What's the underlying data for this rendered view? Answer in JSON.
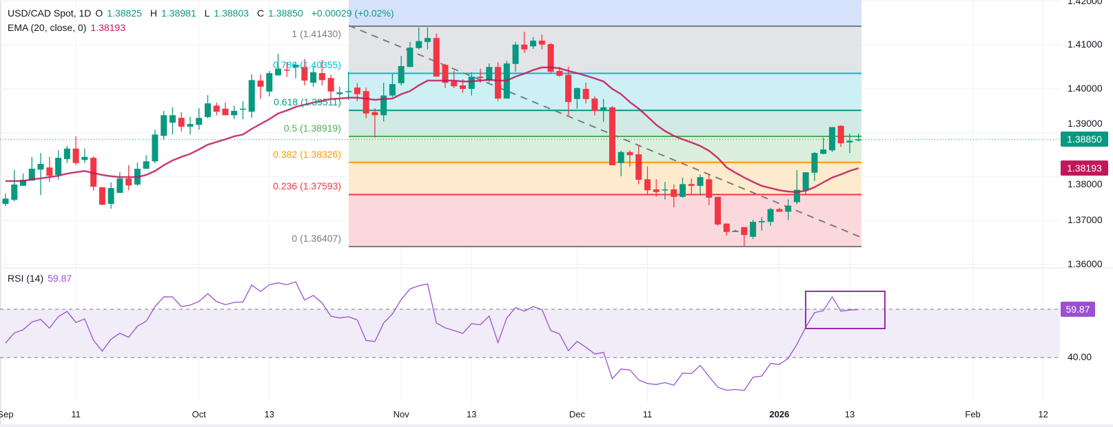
{
  "header": {
    "symbol": "USD/CAD Spot, 1D",
    "o_label": "O",
    "o_value": "1.38825",
    "h_label": "H",
    "h_value": "1.38981",
    "l_label": "L",
    "l_value": "1.38803",
    "c_label": "C",
    "c_value": "1.38850",
    "change": "+0.00029 (+0.02%)",
    "ema_label": "EMA (20, close, 0)",
    "ema_value": "1.38193"
  },
  "rsi": {
    "label": "RSI (14)",
    "value": "59.87"
  },
  "colors": {
    "up": "#089981",
    "down": "#f23645",
    "ema": "#c2185b",
    "rsi": "#9c4fd1",
    "rsi_band": "#f0ecf8",
    "highlight_box": "#9c27b0",
    "trendline": "#787b86"
  },
  "price_axis": {
    "ticks": [
      "1.42000",
      "1.41000",
      "1.40000",
      "1.39000",
      "1.38000",
      "1.37000",
      "1.36000"
    ],
    "last_price_tag": "1.38850",
    "ema_tag": "1.38193"
  },
  "rsi_axis": {
    "ticks": [
      "40.00"
    ],
    "value_tag": "59.87"
  },
  "chart_data": {
    "type": "candlestick",
    "x_ticks": [
      {
        "label": "Sep",
        "bar": 0
      },
      {
        "label": "11",
        "bar": 8
      },
      {
        "label": "Oct",
        "bar": 22
      },
      {
        "label": "13",
        "bar": 30
      },
      {
        "label": "Nov",
        "bar": 45
      },
      {
        "label": "13",
        "bar": 53
      },
      {
        "label": "Dec",
        "bar": 65
      },
      {
        "label": "11",
        "bar": 73
      },
      {
        "label": "2026",
        "bar": 88,
        "bold": true
      },
      {
        "label": "13",
        "bar": 96
      },
      {
        "label": "Feb",
        "bar": 110
      },
      {
        "label": "12",
        "bar": 118
      }
    ],
    "ylim": [
      1.36,
      1.42
    ],
    "ohlc": [
      [
        1.3738,
        1.3761,
        1.3733,
        1.375
      ],
      [
        1.3747,
        1.3815,
        1.3744,
        1.3782
      ],
      [
        1.3779,
        1.3807,
        1.3779,
        1.3793
      ],
      [
        1.3791,
        1.3845,
        1.3791,
        1.3818
      ],
      [
        1.3816,
        1.3854,
        1.3758,
        1.3829
      ],
      [
        1.3821,
        1.3845,
        1.3788,
        1.3802
      ],
      [
        1.3804,
        1.386,
        1.3793,
        1.3843
      ],
      [
        1.384,
        1.387,
        1.3831,
        1.3864
      ],
      [
        1.3864,
        1.3892,
        1.3826,
        1.3831
      ],
      [
        1.3838,
        1.3864,
        1.3831,
        1.3845
      ],
      [
        1.3843,
        1.3846,
        1.3768,
        1.3777
      ],
      [
        1.3776,
        1.3776,
        1.3735,
        1.3736
      ],
      [
        1.3738,
        1.3787,
        1.3727,
        1.3774
      ],
      [
        1.3763,
        1.381,
        1.3763,
        1.3796
      ],
      [
        1.3796,
        1.3826,
        1.3769,
        1.378
      ],
      [
        1.3782,
        1.3832,
        1.3779,
        1.3818
      ],
      [
        1.3818,
        1.3849,
        1.3818,
        1.3835
      ],
      [
        1.3835,
        1.3907,
        1.3831,
        1.3896
      ],
      [
        1.3893,
        1.395,
        1.3885,
        1.394
      ],
      [
        1.3923,
        1.3958,
        1.3896,
        1.394
      ],
      [
        1.3934,
        1.3947,
        1.3903,
        1.3914
      ],
      [
        1.3914,
        1.3936,
        1.3896,
        1.392
      ],
      [
        1.3918,
        1.3956,
        1.3907,
        1.3934
      ],
      [
        1.3936,
        1.3986,
        1.3933,
        1.3967
      ],
      [
        1.3962,
        1.3969,
        1.394,
        1.3948
      ],
      [
        1.3955,
        1.3969,
        1.394,
        1.394
      ],
      [
        1.394,
        1.3962,
        1.3931,
        1.395
      ],
      [
        1.3953,
        1.3972,
        1.3931,
        1.3955
      ],
      [
        1.3948,
        1.4033,
        1.3934,
        1.402
      ],
      [
        1.4019,
        1.4033,
        1.3977,
        1.4005
      ],
      [
        1.3994,
        1.4041,
        1.3983,
        1.4036
      ],
      [
        1.4031,
        1.408,
        1.403,
        1.4046
      ],
      [
        1.4044,
        1.4061,
        1.4027,
        1.4043
      ],
      [
        1.4049,
        1.4061,
        1.4024,
        1.4055
      ],
      [
        1.405,
        1.4068,
        1.4008,
        1.4019
      ],
      [
        1.4014,
        1.405,
        1.4005,
        1.4038
      ],
      [
        1.4036,
        1.4066,
        1.4008,
        1.402
      ],
      [
        1.4025,
        1.4032,
        1.3978,
        1.3994
      ],
      [
        1.3988,
        1.4005,
        1.398,
        1.3992
      ],
      [
        1.3994,
        1.4039,
        1.3975,
        1.3995
      ],
      [
        1.4003,
        1.4013,
        1.3972,
        1.3988
      ],
      [
        1.3995,
        1.4003,
        1.3933,
        1.3944
      ],
      [
        1.3947,
        1.3956,
        1.3889,
        1.394
      ],
      [
        1.394,
        1.4014,
        1.3926,
        1.3985
      ],
      [
        1.3985,
        1.4035,
        1.3981,
        1.4011
      ],
      [
        1.4013,
        1.4075,
        1.4008,
        1.4052
      ],
      [
        1.405,
        1.4107,
        1.405,
        1.4094
      ],
      [
        1.4093,
        1.414,
        1.409,
        1.4109
      ],
      [
        1.4107,
        1.414,
        1.409,
        1.4116
      ],
      [
        1.4116,
        1.4126,
        1.4028,
        1.4028
      ],
      [
        1.4055,
        1.4057,
        1.4002,
        1.4014
      ],
      [
        1.4017,
        1.4041,
        1.4002,
        1.4006
      ],
      [
        1.4008,
        1.4022,
        1.3991,
        1.4
      ],
      [
        1.4,
        1.4038,
        1.3985,
        1.4028
      ],
      [
        1.4028,
        1.4046,
        1.4014,
        1.4025
      ],
      [
        1.4019,
        1.4058,
        1.4015,
        1.405
      ],
      [
        1.405,
        1.4061,
        1.3972,
        1.3978
      ],
      [
        1.3978,
        1.4064,
        1.3978,
        1.4058
      ],
      [
        1.4057,
        1.4107,
        1.4039,
        1.4101
      ],
      [
        1.4101,
        1.413,
        1.4082,
        1.409
      ],
      [
        1.4097,
        1.4118,
        1.4091,
        1.411
      ],
      [
        1.411,
        1.4124,
        1.409,
        1.4101
      ],
      [
        1.4102,
        1.4105,
        1.4035,
        1.4039
      ],
      [
        1.4041,
        1.405,
        1.4028,
        1.403
      ],
      [
        1.4032,
        1.405,
        1.3939,
        1.397
      ],
      [
        1.3977,
        1.4003,
        1.3955,
        1.4002
      ],
      [
        1.4,
        1.4014,
        1.3967,
        1.3977
      ],
      [
        1.3978,
        1.3983,
        1.3939,
        1.395
      ],
      [
        1.3951,
        1.3977,
        1.3925,
        1.3958
      ],
      [
        1.3958,
        1.3961,
        1.3826,
        1.3826
      ],
      [
        1.3831,
        1.3859,
        1.3801,
        1.3856
      ],
      [
        1.3856,
        1.386,
        1.3823,
        1.3849
      ],
      [
        1.3851,
        1.3871,
        1.3783,
        1.3793
      ],
      [
        1.3794,
        1.3823,
        1.376,
        1.3769
      ],
      [
        1.3771,
        1.3794,
        1.3754,
        1.3765
      ],
      [
        1.3769,
        1.3788,
        1.3748,
        1.3771
      ],
      [
        1.3771,
        1.3782,
        1.373,
        1.3754
      ],
      [
        1.3754,
        1.3798,
        1.3752,
        1.3783
      ],
      [
        1.3783,
        1.3796,
        1.376,
        1.3779
      ],
      [
        1.3779,
        1.3805,
        1.3757,
        1.3799
      ],
      [
        1.3794,
        1.3805,
        1.3735,
        1.3752
      ],
      [
        1.3754,
        1.3754,
        1.3688,
        1.3691
      ],
      [
        1.3693,
        1.3694,
        1.3666,
        1.3674
      ],
      [
        1.3674,
        1.3679,
        1.3674,
        1.3677
      ],
      [
        1.3685,
        1.3685,
        1.3642,
        1.3667
      ],
      [
        1.3663,
        1.3702,
        1.3658,
        1.3697
      ],
      [
        1.3696,
        1.3708,
        1.3677,
        1.3699
      ],
      [
        1.3697,
        1.3729,
        1.3688,
        1.3726
      ],
      [
        1.3726,
        1.3729,
        1.372,
        1.372
      ],
      [
        1.372,
        1.3748,
        1.3701,
        1.3734
      ],
      [
        1.3742,
        1.3815,
        1.3737,
        1.377
      ],
      [
        1.3769,
        1.381,
        1.376,
        1.381
      ],
      [
        1.3809,
        1.3856,
        1.379,
        1.3854
      ],
      [
        1.3852,
        1.3889,
        1.3851,
        1.3862
      ],
      [
        1.386,
        1.3913,
        1.3856,
        1.3913
      ],
      [
        1.3916,
        1.3917,
        1.3868,
        1.3876
      ],
      [
        1.3878,
        1.3898,
        1.3854,
        1.3882
      ],
      [
        1.38825,
        1.38981,
        1.38803,
        1.3885
      ]
    ],
    "ema20": [
      1.379,
      1.379,
      1.379,
      1.3794,
      1.3796,
      1.3799,
      1.3802,
      1.3807,
      1.381,
      1.3813,
      1.3808,
      1.3804,
      1.3801,
      1.3799,
      1.3799,
      1.3799,
      1.3804,
      1.3813,
      1.3826,
      1.3837,
      1.3845,
      1.3852,
      1.3862,
      1.3873,
      1.3879,
      1.3885,
      1.3892,
      1.3896,
      1.3909,
      1.392,
      1.3931,
      1.3944,
      1.3951,
      1.3959,
      1.3964,
      1.3969,
      1.3973,
      1.3977,
      1.3978,
      1.398,
      1.398,
      1.3978,
      1.3975,
      1.3977,
      1.3978,
      1.3988,
      1.3995,
      1.4008,
      1.4019,
      1.4019,
      1.4019,
      1.4019,
      1.4017,
      1.4017,
      1.4019,
      1.4021,
      1.4019,
      1.4019,
      1.4028,
      1.4035,
      1.4043,
      1.4049,
      1.4049,
      1.4047,
      1.4041,
      1.4036,
      1.403,
      1.4024,
      1.4017,
      1.4,
      1.3988,
      1.397,
      1.3955,
      1.3937,
      1.3918,
      1.3904,
      1.3893,
      1.3885,
      1.3878,
      1.387,
      1.3859,
      1.3843,
      1.3821,
      1.3809,
      1.3798,
      1.3788,
      1.3779,
      1.3774,
      1.3769,
      1.3766,
      1.3765,
      1.3768,
      1.3776,
      1.3787,
      1.3798,
      1.3805,
      1.3813,
      1.38193
    ],
    "rsi14": [
      46.0,
      50.2,
      51.5,
      54.7,
      55.8,
      52.2,
      56.9,
      59.1,
      54.5,
      56.0,
      47.2,
      42.7,
      47.6,
      50.1,
      48.4,
      53.0,
      55.0,
      61.1,
      65.1,
      65.1,
      61.1,
      61.7,
      63.2,
      66.4,
      63.2,
      61.9,
      62.8,
      63.0,
      70.0,
      67.3,
      70.1,
      70.9,
      70.1,
      71.3,
      63.8,
      65.7,
      62.6,
      57.1,
      56.4,
      56.9,
      55.6,
      47.1,
      46.7,
      54.3,
      58.1,
      64.0,
      68.4,
      69.7,
      70.4,
      54.3,
      52.3,
      51.2,
      50.0,
      54.0,
      53.6,
      57.2,
      46.2,
      56.4,
      60.7,
      59.2,
      61.1,
      59.9,
      51.2,
      49.8,
      42.9,
      46.7,
      44.3,
      41.5,
      42.2,
      31.3,
      35.3,
      34.9,
      30.8,
      29.3,
      28.9,
      29.7,
      28.6,
      33.6,
      33.4,
      36.8,
      32.2,
      27.8,
      26.5,
      26.9,
      26.4,
      31.9,
      32.4,
      37.6,
      37.2,
      39.7,
      45.5,
      52.6,
      58.6,
      59.4,
      65.1,
      59.2,
      59.7,
      59.87
    ],
    "rsi_levels": [
      60,
      40
    ],
    "fib_levels": [
      {
        "ratio": "1",
        "price": 1.4143,
        "label": "1 (1.41430)",
        "line": "#787b86",
        "fill": "#e3e4e8"
      },
      {
        "ratio": "0.786",
        "price": 1.40355,
        "label": "0.786 (1.40355)",
        "line": "#00bcd4",
        "fill": "#cdf0f4"
      },
      {
        "ratio": "0.618",
        "price": 1.39511,
        "label": "0.618 (1.39511)",
        "line": "#089981",
        "fill": "#d1ebe4"
      },
      {
        "ratio": "0.5",
        "price": 1.38919,
        "label": "0.5 (1.38919)",
        "line": "#4caf50",
        "fill": "#dcefdc"
      },
      {
        "ratio": "0.382",
        "price": 1.38326,
        "label": "0.382 (1.38326)",
        "line": "#ff9800",
        "fill": "#feeacc"
      },
      {
        "ratio": "0.236",
        "price": 1.37593,
        "label": "0.236 (1.37593)",
        "line": "#f23645",
        "fill": "#fbd8dc"
      },
      {
        "ratio": "0",
        "price": 1.36407,
        "label": "0 (1.36407)",
        "line": "#787b86",
        "fill": null
      }
    ],
    "fib_above_fill": "#d6e2fc"
  }
}
